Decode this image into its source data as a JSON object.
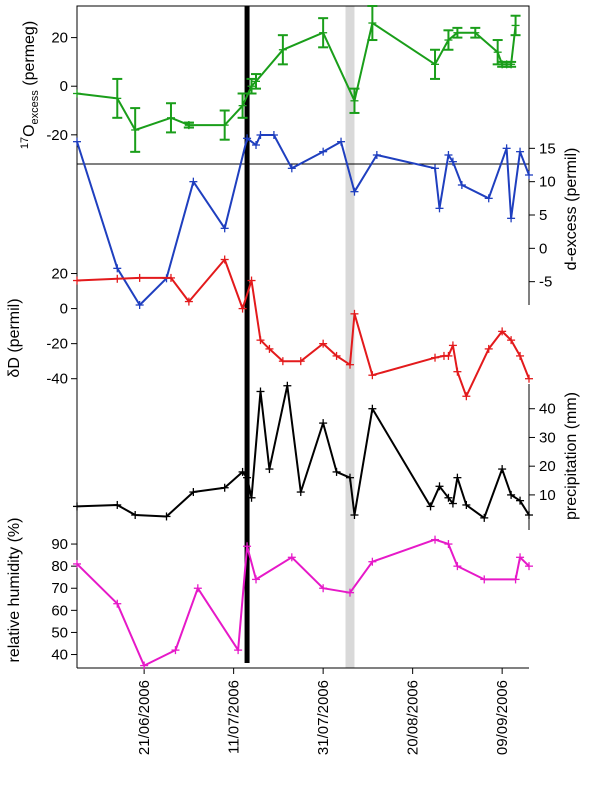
{
  "chart_data": {
    "type": "line",
    "x_axis": {
      "kind": "date",
      "ticks": [
        "21/06/2006",
        "11/07/2006",
        "31/07/2006",
        "20/08/2006",
        "09/09/2006"
      ],
      "tick_dates": [
        "2006-06-21",
        "2006-07-11",
        "2006-07-31",
        "2006-08-20",
        "2006-09-09"
      ],
      "range": [
        "2006-06-06",
        "2006-09-15"
      ]
    },
    "markers": [
      {
        "kind": "vertical-line",
        "date": "2006-07-14",
        "color": "#000000"
      },
      {
        "kind": "shaded-band",
        "from": "2006-08-05",
        "to": "2006-08-07",
        "color": "#d9d9d9"
      }
    ],
    "panels": [
      {
        "name": "o17",
        "axis_side": "left",
        "ylabel_main": "O",
        "ylabel_sup": "17",
        "ylabel_sub": "excess",
        "ylabel_unit": " (permeg)",
        "ylim": [
          -32,
          33
        ],
        "ticks": [
          -20,
          0,
          20
        ],
        "tick_labels": [
          "-20",
          "0",
          "20"
        ],
        "color": "#1a9e1a",
        "x": [
          "2006-06-06",
          "2006-06-15",
          "2006-06-19",
          "2006-06-27",
          "2006-07-01",
          "2006-07-01",
          "2006-07-09",
          "2006-07-13",
          "2006-07-15",
          "2006-07-16",
          "2006-07-22",
          "2006-07-31",
          "2006-08-07",
          "2006-08-11",
          "2006-08-25",
          "2006-08-28",
          "2006-08-30",
          "2006-09-03",
          "2006-09-08",
          "2006-09-09",
          "2006-09-10",
          "2006-09-11",
          "2006-09-12"
        ],
        "y": [
          -3,
          -5,
          -18,
          -13,
          -16,
          -16,
          -16,
          -8,
          0,
          2,
          15,
          22,
          -6,
          26,
          9,
          19,
          22,
          22,
          14,
          9,
          9,
          9,
          25
        ],
        "err": [
          0,
          8,
          9,
          6,
          1,
          1,
          6,
          5,
          3,
          3,
          6,
          6,
          5,
          7,
          6,
          4,
          2,
          2,
          5,
          1,
          1,
          1,
          4
        ]
      },
      {
        "name": "d-excess",
        "axis_side": "right",
        "ylabel": "d-excess (permil)",
        "ylim": [
          -10,
          20
        ],
        "ticks": [
          -5,
          0,
          5,
          10,
          15
        ],
        "tick_labels": [
          "-5",
          "0",
          "5",
          "10",
          "15"
        ],
        "color": "#1f3fbf",
        "x": [
          "2006-06-06",
          "2006-06-15",
          "2006-06-20",
          "2006-06-26",
          "2006-07-02",
          "2006-07-09",
          "2006-07-14",
          "2006-07-16",
          "2006-07-17",
          "2006-07-20",
          "2006-07-24",
          "2006-07-31",
          "2006-08-04",
          "2006-08-07",
          "2006-08-12",
          "2006-08-25",
          "2006-08-26",
          "2006-08-28",
          "2006-08-29",
          "2006-08-31",
          "2006-09-06",
          "2006-09-10",
          "2006-09-11",
          "2006-09-13",
          "2006-09-15"
        ],
        "y": [
          16,
          -3,
          -8.5,
          -4.5,
          10,
          3,
          16.5,
          15.5,
          17,
          17,
          12,
          14.5,
          16,
          8.5,
          14,
          12,
          6,
          14,
          13,
          9.5,
          7.5,
          15,
          4.5,
          14.5,
          11
        ]
      },
      {
        "name": "dD",
        "axis_side": "left",
        "ylabel": "δD (permil)",
        "ylim": [
          -55,
          30
        ],
        "ticks": [
          -40,
          -20,
          0,
          20
        ],
        "tick_labels": [
          "-40",
          "-20",
          "0",
          "20"
        ],
        "color": "#e31a1c",
        "x": [
          "2006-06-06",
          "2006-06-15",
          "2006-06-20",
          "2006-06-27",
          "2006-07-01",
          "2006-07-09",
          "2006-07-13",
          "2006-07-15",
          "2006-07-17",
          "2006-07-19",
          "2006-07-22",
          "2006-07-26",
          "2006-07-31",
          "2006-08-03",
          "2006-08-06",
          "2006-08-07",
          "2006-08-11",
          "2006-08-25",
          "2006-08-27",
          "2006-08-28",
          "2006-08-29",
          "2006-08-30",
          "2006-09-01",
          "2006-09-06",
          "2006-09-09",
          "2006-09-11",
          "2006-09-13",
          "2006-09-15"
        ],
        "y": [
          16,
          17,
          17.5,
          17.5,
          4,
          28,
          0,
          16,
          -18,
          -23,
          -30,
          -30,
          -20,
          -27,
          -32,
          -3,
          -38,
          -28,
          -27,
          -27,
          -21,
          -36,
          -50,
          -23,
          -13,
          -18,
          -27,
          -40
        ]
      },
      {
        "name": "precipitation",
        "axis_side": "right",
        "ylabel": "precipitation (mm)",
        "ylim": [
          -5,
          50
        ],
        "ticks": [
          10,
          20,
          30,
          40
        ],
        "tick_labels": [
          "10",
          "20",
          "30",
          "40"
        ],
        "color": "#000000",
        "x": [
          "2006-06-06",
          "2006-06-15",
          "2006-06-19",
          "2006-06-26",
          "2006-07-02",
          "2006-07-09",
          "2006-07-13",
          "2006-07-14",
          "2006-07-15",
          "2006-07-17",
          "2006-07-19",
          "2006-07-23",
          "2006-07-26",
          "2006-07-31",
          "2006-08-03",
          "2006-08-06",
          "2006-08-07",
          "2006-08-11",
          "2006-08-24",
          "2006-08-26",
          "2006-08-28",
          "2006-08-29",
          "2006-08-30",
          "2006-09-01",
          "2006-09-05",
          "2006-09-09",
          "2006-09-11",
          "2006-09-13",
          "2006-09-15"
        ],
        "y": [
          6,
          6.5,
          3,
          2.5,
          11,
          12.5,
          18,
          16,
          9,
          46,
          19,
          48,
          11,
          35,
          18,
          16,
          3,
          40,
          6,
          13,
          9,
          7,
          16,
          6.5,
          2,
          19,
          10,
          8,
          3
        ]
      },
      {
        "name": "humidity",
        "axis_side": "left",
        "ylabel": "relative humidity (%)",
        "ylim": [
          33,
          95
        ],
        "ticks": [
          40,
          50,
          60,
          70,
          80,
          90
        ],
        "tick_labels": [
          "40",
          "50",
          "60",
          "70",
          "80",
          "90"
        ],
        "color": "#e619c8",
        "x": [
          "2006-06-06",
          "2006-06-15",
          "2006-06-21",
          "2006-06-28",
          "2006-07-03",
          "2006-07-12",
          "2006-07-14",
          "2006-07-16",
          "2006-07-24",
          "2006-07-31",
          "2006-08-06",
          "2006-08-11",
          "2006-08-25",
          "2006-08-28",
          "2006-08-30",
          "2006-09-05",
          "2006-09-12",
          "2006-09-13",
          "2006-09-15"
        ],
        "y": [
          81,
          63,
          35,
          42,
          70,
          42,
          89,
          74,
          84,
          70,
          68,
          82,
          92,
          90,
          80,
          74,
          74,
          84,
          80
        ]
      }
    ]
  }
}
